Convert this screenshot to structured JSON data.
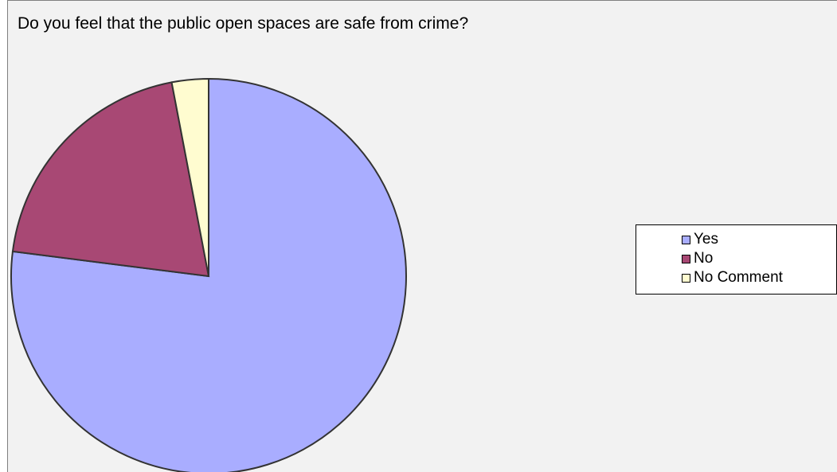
{
  "chart_data": {
    "type": "pie",
    "title": "Do you feel that the public open spaces are safe from crime?",
    "categories": [
      "Yes",
      "No",
      "No Comment"
    ],
    "values": [
      77,
      20,
      3
    ],
    "colors": [
      "#a9adff",
      "#a84874",
      "#fffcd0"
    ],
    "legend_position": "right"
  }
}
